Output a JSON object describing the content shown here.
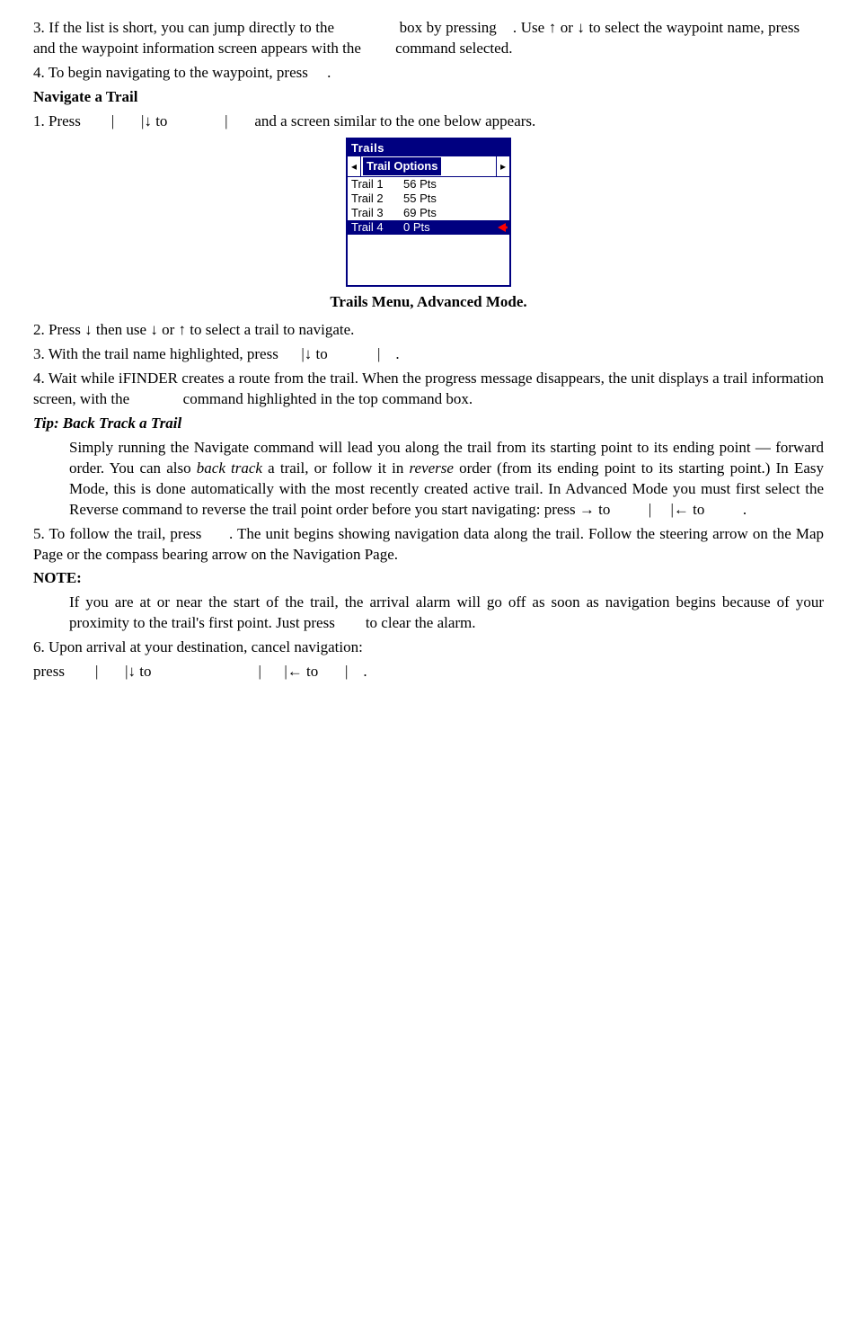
{
  "p1": "3. If the list is short, you can jump directly to the                box by pressing    . Use ↑ or ↓ to select the waypoint name, press       and the waypoint information screen appears with the         command selected.",
  "p2": "4. To begin navigating to the waypoint, press     .",
  "h1": "Navigate a Trail",
  "p3a": "1. Press        |       |↓ to               |       and a screen similar to the one below appears.",
  "trails": {
    "title": "Trails",
    "tab_left": "◂",
    "tab_label": "Trail Options",
    "tab_right": "▸",
    "rows": [
      {
        "name": "Trail 1",
        "pts": "56 Pts",
        "selected": false
      },
      {
        "name": "Trail 2",
        "pts": "55 Pts",
        "selected": false
      },
      {
        "name": "Trail 3",
        "pts": "69 Pts",
        "selected": false
      },
      {
        "name": "Trail 4",
        "pts": "0 Pts",
        "selected": true
      }
    ]
  },
  "caption": "Trails Menu, Advanced Mode.",
  "p4": "2. Press ↓ then use ↓ or ↑ to select a trail to navigate.",
  "p5": "3. With the trail name highlighted, press      |↓ to             |    .",
  "p6": "4. Wait while iFINDER creates a route from the trail. When the progress message disappears, the unit displays a trail information screen, with the              command highlighted in the top command box.",
  "h2": "Tip: Back Track a Trail",
  "tip_a": "Simply running the Navigate command will lead you along the trail from its starting point to its ending point — forward order. You can also ",
  "tip_b": "back track",
  "tip_c": " a trail, or follow it in ",
  "tip_d": "reverse",
  "tip_e": " order (from its ending point to its starting point.) In Easy Mode, this is done automatically with the most recently created active trail. In Advanced Mode you must first select the Reverse command to reverse the trail point order before you start navigating: press → to          |     |← to          .",
  "p8": "5. To follow the trail, press      . The unit begins showing navigation data along the trail. Follow the steering arrow on the Map Page or the compass bearing arrow on the Navigation Page.",
  "h3": "NOTE:",
  "note": "If you are at or near the start of the trail, the arrival alarm will go off as soon as navigation begins because of your proximity to the trail's first point. Just press        to clear the alarm.",
  "p9": "6. Upon arrival at your destination, cancel navigation:",
  "p10": "press        |       |↓ to                            |      |← to       |    ."
}
